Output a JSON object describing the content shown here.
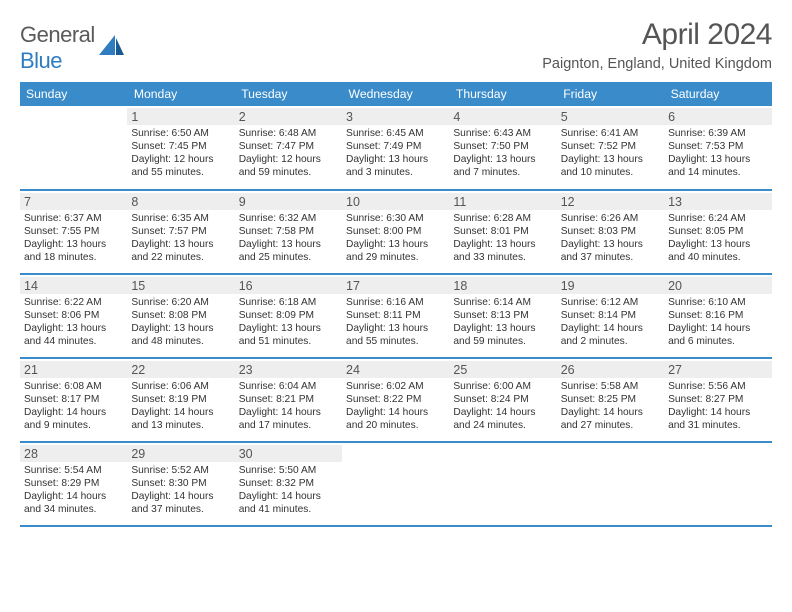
{
  "brand": {
    "part1": "General",
    "part2": "Blue",
    "accent": "#2f7dc0",
    "gray": "#5a5a5a"
  },
  "title": "April 2024",
  "subtitle": "Paignton, England, United Kingdom",
  "header_bg": "#3a8bc9",
  "daynum_bg": "#eeeeee",
  "border_color": "#3a8bc9",
  "day_headers": [
    "Sunday",
    "Monday",
    "Tuesday",
    "Wednesday",
    "Thursday",
    "Friday",
    "Saturday"
  ],
  "font_sizes": {
    "title": 30,
    "subtitle": 14.5,
    "header": 12.2,
    "daynum": 12.5,
    "body": 10.2
  },
  "weeks": [
    [
      {
        "blank": true
      },
      {
        "n": "1",
        "sr": "6:50 AM",
        "ss": "7:45 PM",
        "dl": "12 hours and 55 minutes."
      },
      {
        "n": "2",
        "sr": "6:48 AM",
        "ss": "7:47 PM",
        "dl": "12 hours and 59 minutes."
      },
      {
        "n": "3",
        "sr": "6:45 AM",
        "ss": "7:49 PM",
        "dl": "13 hours and 3 minutes."
      },
      {
        "n": "4",
        "sr": "6:43 AM",
        "ss": "7:50 PM",
        "dl": "13 hours and 7 minutes."
      },
      {
        "n": "5",
        "sr": "6:41 AM",
        "ss": "7:52 PM",
        "dl": "13 hours and 10 minutes."
      },
      {
        "n": "6",
        "sr": "6:39 AM",
        "ss": "7:53 PM",
        "dl": "13 hours and 14 minutes."
      }
    ],
    [
      {
        "n": "7",
        "sr": "6:37 AM",
        "ss": "7:55 PM",
        "dl": "13 hours and 18 minutes."
      },
      {
        "n": "8",
        "sr": "6:35 AM",
        "ss": "7:57 PM",
        "dl": "13 hours and 22 minutes."
      },
      {
        "n": "9",
        "sr": "6:32 AM",
        "ss": "7:58 PM",
        "dl": "13 hours and 25 minutes."
      },
      {
        "n": "10",
        "sr": "6:30 AM",
        "ss": "8:00 PM",
        "dl": "13 hours and 29 minutes."
      },
      {
        "n": "11",
        "sr": "6:28 AM",
        "ss": "8:01 PM",
        "dl": "13 hours and 33 minutes."
      },
      {
        "n": "12",
        "sr": "6:26 AM",
        "ss": "8:03 PM",
        "dl": "13 hours and 37 minutes."
      },
      {
        "n": "13",
        "sr": "6:24 AM",
        "ss": "8:05 PM",
        "dl": "13 hours and 40 minutes."
      }
    ],
    [
      {
        "n": "14",
        "sr": "6:22 AM",
        "ss": "8:06 PM",
        "dl": "13 hours and 44 minutes."
      },
      {
        "n": "15",
        "sr": "6:20 AM",
        "ss": "8:08 PM",
        "dl": "13 hours and 48 minutes."
      },
      {
        "n": "16",
        "sr": "6:18 AM",
        "ss": "8:09 PM",
        "dl": "13 hours and 51 minutes."
      },
      {
        "n": "17",
        "sr": "6:16 AM",
        "ss": "8:11 PM",
        "dl": "13 hours and 55 minutes."
      },
      {
        "n": "18",
        "sr": "6:14 AM",
        "ss": "8:13 PM",
        "dl": "13 hours and 59 minutes."
      },
      {
        "n": "19",
        "sr": "6:12 AM",
        "ss": "8:14 PM",
        "dl": "14 hours and 2 minutes."
      },
      {
        "n": "20",
        "sr": "6:10 AM",
        "ss": "8:16 PM",
        "dl": "14 hours and 6 minutes."
      }
    ],
    [
      {
        "n": "21",
        "sr": "6:08 AM",
        "ss": "8:17 PM",
        "dl": "14 hours and 9 minutes."
      },
      {
        "n": "22",
        "sr": "6:06 AM",
        "ss": "8:19 PM",
        "dl": "14 hours and 13 minutes."
      },
      {
        "n": "23",
        "sr": "6:04 AM",
        "ss": "8:21 PM",
        "dl": "14 hours and 17 minutes."
      },
      {
        "n": "24",
        "sr": "6:02 AM",
        "ss": "8:22 PM",
        "dl": "14 hours and 20 minutes."
      },
      {
        "n": "25",
        "sr": "6:00 AM",
        "ss": "8:24 PM",
        "dl": "14 hours and 24 minutes."
      },
      {
        "n": "26",
        "sr": "5:58 AM",
        "ss": "8:25 PM",
        "dl": "14 hours and 27 minutes."
      },
      {
        "n": "27",
        "sr": "5:56 AM",
        "ss": "8:27 PM",
        "dl": "14 hours and 31 minutes."
      }
    ],
    [
      {
        "n": "28",
        "sr": "5:54 AM",
        "ss": "8:29 PM",
        "dl": "14 hours and 34 minutes."
      },
      {
        "n": "29",
        "sr": "5:52 AM",
        "ss": "8:30 PM",
        "dl": "14 hours and 37 minutes."
      },
      {
        "n": "30",
        "sr": "5:50 AM",
        "ss": "8:32 PM",
        "dl": "14 hours and 41 minutes."
      },
      {
        "blank": true
      },
      {
        "blank": true
      },
      {
        "blank": true
      },
      {
        "blank": true
      }
    ]
  ],
  "labels": {
    "sunrise": "Sunrise: ",
    "sunset": "Sunset: ",
    "daylight": "Daylight: "
  }
}
